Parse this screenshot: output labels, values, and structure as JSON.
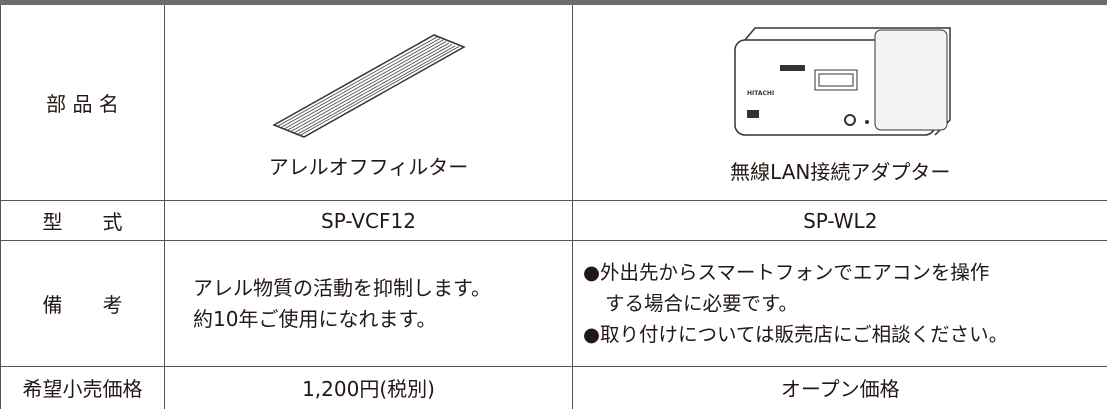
{
  "table": {
    "row_headers": [
      "部 品 名",
      "型　　式",
      "備　　考",
      "希望小売価格"
    ],
    "columns": [
      {
        "name": "アレルオフフィルター",
        "model": "SP-VCF12",
        "notes": [
          "アレル物質の活動を抑制します。",
          "約10年ご使用になれます。"
        ],
        "price": "1,200円(税別)"
      },
      {
        "name": "無線LAN接続アダプター",
        "model": "SP-WL2",
        "notes": [
          "●外出先からスマートフォンでエアコンを操作",
          "する場合に必要です。",
          "●取り付けについては販売店にご相談ください。"
        ],
        "price": "オープン価格"
      }
    ]
  }
}
